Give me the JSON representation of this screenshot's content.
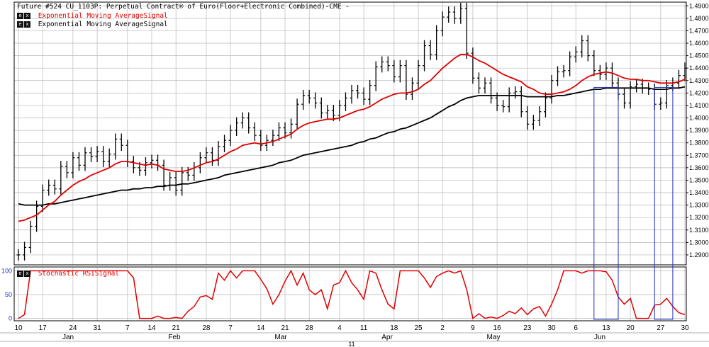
{
  "header": {
    "title": "Future #524 CU_1103P: Perpetual Contract® of Euro(Floor+Electronic Combined)-CME -"
  },
  "legend": {
    "ema_fast": "Exponential Moving AverageSignal",
    "ema_slow": "Exponential Moving AverageSignal",
    "stoch": "Stochastic RSISignal",
    "box_e": "e",
    "box_x": "x"
  },
  "colors": {
    "price_bars": "#000000",
    "ema_fast": "#e00000",
    "ema_slow": "#000000",
    "stoch": "#e00000",
    "markers": "#2030c0",
    "grid": "#b8b8b8",
    "background": "#ffffff"
  },
  "chart_data": [
    {
      "type": "ohlc",
      "y_ticks": [
        1.29,
        1.3,
        1.31,
        1.32,
        1.33,
        1.34,
        1.35,
        1.36,
        1.37,
        1.38,
        1.39,
        1.4,
        1.41,
        1.42,
        1.43,
        1.44,
        1.45,
        1.46,
        1.47,
        1.48,
        1.49
      ],
      "ylim": [
        1.282,
        1.493
      ],
      "x_day_labels": [
        "10",
        "17",
        "24",
        "31",
        "7",
        "14",
        "21",
        "28",
        "7",
        "14",
        "21",
        "28",
        "4",
        "11",
        "18",
        "25",
        "2",
        "9",
        "16",
        "23",
        "30",
        "6",
        "13",
        "20",
        "27",
        "30"
      ],
      "x_month_labels": [
        "Jan",
        "Feb",
        "Mar",
        "Apr",
        "May",
        "Jun"
      ],
      "x_year_label": "11",
      "close": [
        1.29,
        1.296,
        1.313,
        1.329,
        1.342,
        1.346,
        1.343,
        1.361,
        1.356,
        1.368,
        1.362,
        1.372,
        1.369,
        1.373,
        1.365,
        1.371,
        1.383,
        1.378,
        1.365,
        1.36,
        1.358,
        1.364,
        1.366,
        1.362,
        1.346,
        1.352,
        1.342,
        1.356,
        1.354,
        1.36,
        1.368,
        1.372,
        1.366,
        1.377,
        1.382,
        1.39,
        1.396,
        1.4,
        1.392,
        1.386,
        1.378,
        1.382,
        1.386,
        1.392,
        1.388,
        1.395,
        1.411,
        1.418,
        1.416,
        1.412,
        1.404,
        1.406,
        1.402,
        1.41,
        1.416,
        1.422,
        1.42,
        1.415,
        1.426,
        1.441,
        1.445,
        1.442,
        1.433,
        1.442,
        1.419,
        1.428,
        1.442,
        1.458,
        1.451,
        1.47,
        1.481,
        1.485,
        1.48,
        1.488,
        1.452,
        1.432,
        1.424,
        1.428,
        1.416,
        1.41,
        1.409,
        1.42,
        1.421,
        1.405,
        1.395,
        1.398,
        1.405,
        1.416,
        1.43,
        1.437,
        1.438,
        1.449,
        1.453,
        1.462,
        1.45,
        1.438,
        1.435,
        1.44,
        1.428,
        1.419,
        1.412,
        1.425,
        1.427,
        1.424,
        1.423,
        1.411,
        1.412,
        1.426,
        1.428,
        1.434,
        1.44
      ],
      "ema_fast": [
        1.317,
        1.318,
        1.32,
        1.322,
        1.326,
        1.33,
        1.333,
        1.338,
        1.342,
        1.346,
        1.349,
        1.351,
        1.354,
        1.356,
        1.358,
        1.36,
        1.363,
        1.365,
        1.365,
        1.364,
        1.363,
        1.362,
        1.363,
        1.362,
        1.359,
        1.358,
        1.357,
        1.357,
        1.358,
        1.36,
        1.362,
        1.364,
        1.365,
        1.367,
        1.37,
        1.373,
        1.375,
        1.378,
        1.379,
        1.38,
        1.379,
        1.38,
        1.381,
        1.383,
        1.385,
        1.387,
        1.391,
        1.394,
        1.396,
        1.397,
        1.398,
        1.399,
        1.399,
        1.4,
        1.402,
        1.404,
        1.406,
        1.407,
        1.409,
        1.412,
        1.415,
        1.417,
        1.419,
        1.42,
        1.42,
        1.421,
        1.423,
        1.427,
        1.43,
        1.435,
        1.44,
        1.444,
        1.448,
        1.451,
        1.451,
        1.449,
        1.446,
        1.444,
        1.441,
        1.438,
        1.435,
        1.433,
        1.431,
        1.429,
        1.425,
        1.423,
        1.42,
        1.419,
        1.419,
        1.42,
        1.421,
        1.423,
        1.426,
        1.43,
        1.433,
        1.435,
        1.436,
        1.437,
        1.436,
        1.434,
        1.432,
        1.431,
        1.431,
        1.43,
        1.43,
        1.429,
        1.428,
        1.428,
        1.428,
        1.429,
        1.431
      ],
      "ema_slow": [
        1.331,
        1.33,
        1.33,
        1.33,
        1.33,
        1.331,
        1.331,
        1.332,
        1.333,
        1.334,
        1.335,
        1.336,
        1.337,
        1.338,
        1.339,
        1.34,
        1.341,
        1.342,
        1.342,
        1.343,
        1.343,
        1.344,
        1.344,
        1.345,
        1.345,
        1.346,
        1.346,
        1.347,
        1.347,
        1.348,
        1.349,
        1.35,
        1.351,
        1.352,
        1.354,
        1.355,
        1.356,
        1.357,
        1.358,
        1.359,
        1.36,
        1.361,
        1.362,
        1.364,
        1.365,
        1.366,
        1.368,
        1.37,
        1.371,
        1.372,
        1.373,
        1.374,
        1.375,
        1.376,
        1.377,
        1.378,
        1.38,
        1.381,
        1.383,
        1.384,
        1.386,
        1.388,
        1.389,
        1.391,
        1.392,
        1.394,
        1.396,
        1.398,
        1.4,
        1.403,
        1.406,
        1.409,
        1.411,
        1.414,
        1.416,
        1.417,
        1.418,
        1.418,
        1.418,
        1.418,
        1.418,
        1.418,
        1.418,
        1.418,
        1.417,
        1.417,
        1.417,
        1.417,
        1.417,
        1.418,
        1.418,
        1.419,
        1.42,
        1.421,
        1.422,
        1.423,
        1.423,
        1.424,
        1.424,
        1.424,
        1.424,
        1.424,
        1.424,
        1.424,
        1.424,
        1.423,
        1.423,
        1.423,
        1.424,
        1.424,
        1.425
      ],
      "markers_x_index": [
        95,
        99,
        105,
        108
      ]
    },
    {
      "type": "line",
      "name": "Stochastic RSI",
      "y_ticks": [
        0,
        50,
        100
      ],
      "ylim": [
        -5,
        108
      ],
      "values": [
        0,
        8,
        100,
        100,
        100,
        100,
        100,
        100,
        100,
        100,
        100,
        100,
        100,
        100,
        100,
        100,
        100,
        100,
        100,
        85,
        0,
        0,
        0,
        5,
        0,
        0,
        2,
        0,
        15,
        25,
        45,
        48,
        40,
        95,
        80,
        100,
        85,
        100,
        100,
        100,
        82,
        62,
        30,
        50,
        78,
        100,
        70,
        95,
        60,
        50,
        60,
        20,
        70,
        75,
        100,
        75,
        60,
        40,
        100,
        95,
        60,
        30,
        20,
        100,
        100,
        100,
        100,
        85,
        65,
        88,
        95,
        100,
        95,
        100,
        60,
        0,
        10,
        0,
        3,
        0,
        6,
        15,
        10,
        22,
        8,
        20,
        25,
        5,
        30,
        60,
        100,
        100,
        100,
        95,
        100,
        100,
        100,
        98,
        80,
        45,
        30,
        42,
        0,
        0,
        0,
        28,
        30,
        42,
        25,
        12,
        8
      ]
    }
  ]
}
